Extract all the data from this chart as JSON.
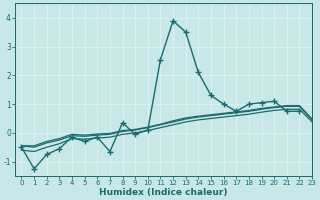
{
  "xlabel": "Humidex (Indice chaleur)",
  "ylabel": "",
  "xlim": [
    -0.5,
    23
  ],
  "ylim": [
    -1.5,
    4.5
  ],
  "yticks": [
    -1,
    0,
    1,
    2,
    3,
    4
  ],
  "xticks": [
    0,
    1,
    2,
    3,
    4,
    5,
    6,
    7,
    8,
    9,
    10,
    11,
    12,
    13,
    14,
    15,
    16,
    17,
    18,
    19,
    20,
    21,
    22,
    23
  ],
  "background_color": "#c8e8e8",
  "grid_color": "#e0f0f0",
  "line_color": "#1a6b6b",
  "series": [
    {
      "x": [
        0,
        1,
        2,
        3,
        4,
        5,
        6,
        7,
        8,
        9,
        10,
        11,
        12,
        13,
        14,
        15,
        16,
        17,
        18,
        19,
        20,
        21,
        22
      ],
      "y": [
        -0.5,
        -1.25,
        -0.75,
        -0.55,
        -0.15,
        -0.3,
        -0.15,
        -0.65,
        0.35,
        -0.05,
        0.1,
        2.55,
        3.9,
        3.5,
        2.1,
        1.3,
        1.0,
        0.75,
        1.0,
        1.05,
        1.1,
        0.75,
        0.75
      ],
      "marker": "+",
      "markersize": 4,
      "linewidth": 1.0,
      "zorder": 3
    },
    {
      "x": [
        0,
        1,
        2,
        3,
        4,
        5,
        6,
        7,
        8,
        9,
        10,
        11,
        12,
        13,
        14,
        15,
        16,
        17,
        18,
        19,
        20,
        21,
        22,
        23
      ],
      "y": [
        -0.45,
        -0.5,
        -0.35,
        -0.25,
        -0.1,
        -0.12,
        -0.08,
        -0.05,
        0.05,
        0.1,
        0.18,
        0.28,
        0.38,
        0.48,
        0.55,
        0.6,
        0.65,
        0.7,
        0.75,
        0.82,
        0.88,
        0.92,
        0.92,
        0.45
      ],
      "marker": null,
      "markersize": 0,
      "linewidth": 0.9,
      "zorder": 2
    },
    {
      "x": [
        0,
        1,
        2,
        3,
        4,
        5,
        6,
        7,
        8,
        9,
        10,
        11,
        12,
        13,
        14,
        15,
        16,
        17,
        18,
        19,
        20,
        21,
        22,
        23
      ],
      "y": [
        -0.45,
        -0.45,
        -0.3,
        -0.2,
        -0.05,
        -0.08,
        -0.04,
        -0.02,
        0.08,
        0.12,
        0.2,
        0.3,
        0.42,
        0.52,
        0.58,
        0.63,
        0.68,
        0.73,
        0.78,
        0.85,
        0.9,
        0.95,
        0.95,
        0.48
      ],
      "marker": null,
      "markersize": 0,
      "linewidth": 0.9,
      "zorder": 2
    },
    {
      "x": [
        0,
        1,
        2,
        3,
        4,
        5,
        6,
        7,
        8,
        9,
        10,
        11,
        12,
        13,
        14,
        15,
        16,
        17,
        18,
        19,
        20,
        21,
        22,
        23
      ],
      "y": [
        -0.6,
        -0.65,
        -0.5,
        -0.38,
        -0.2,
        -0.22,
        -0.18,
        -0.15,
        -0.05,
        0.0,
        0.08,
        0.18,
        0.28,
        0.38,
        0.45,
        0.5,
        0.55,
        0.6,
        0.65,
        0.72,
        0.78,
        0.82,
        0.82,
        0.38
      ],
      "marker": null,
      "markersize": 0,
      "linewidth": 0.9,
      "zorder": 2
    }
  ]
}
